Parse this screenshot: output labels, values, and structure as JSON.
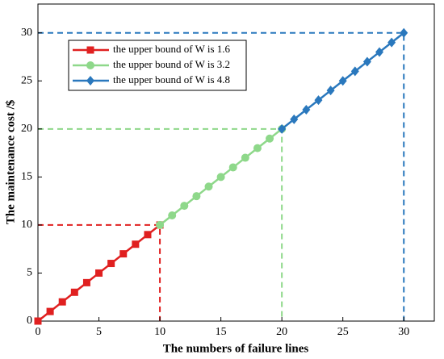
{
  "chart_data": {
    "type": "line",
    "xlabel": "The numbers of failure lines",
    "ylabel": "The maintenance cost /$",
    "xlim": [
      0,
      32.5
    ],
    "ylim": [
      0,
      33
    ],
    "xticks": [
      0,
      5,
      10,
      15,
      20,
      25,
      30
    ],
    "yticks": [
      0,
      5,
      10,
      15,
      20,
      25,
      30
    ],
    "legend": "upper left",
    "series": [
      {
        "name": "the upper bound of W is 1.6",
        "color": "#e02020",
        "marker": "square",
        "x": [
          0,
          1,
          2,
          3,
          4,
          5,
          6,
          7,
          8,
          9,
          10
        ],
        "values": [
          0,
          1,
          2,
          3,
          4,
          5,
          6,
          7,
          8,
          9,
          10
        ]
      },
      {
        "name": "the upper bound of W is 3.2",
        "color": "#8ed88a",
        "marker": "circle",
        "x": [
          10,
          11,
          12,
          13,
          14,
          15,
          16,
          17,
          18,
          19,
          20
        ],
        "values": [
          10,
          11,
          12,
          13,
          14,
          15,
          16,
          17,
          18,
          19,
          20
        ]
      },
      {
        "name": "the upper bound of W is 4.8",
        "color": "#2a78bd",
        "marker": "diamond",
        "x": [
          20,
          21,
          22,
          23,
          24,
          25,
          26,
          27,
          28,
          29,
          30
        ],
        "values": [
          20,
          21,
          22,
          23,
          24,
          25,
          26,
          27,
          28,
          29,
          30
        ]
      }
    ]
  }
}
